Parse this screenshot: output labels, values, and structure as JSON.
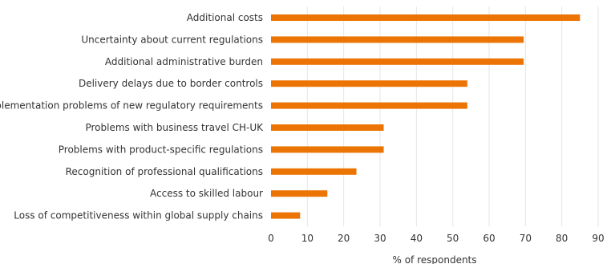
{
  "chart_data": {
    "type": "bar",
    "orientation": "horizontal",
    "categories": [
      "Additional costs",
      "Uncertainty about current regulations",
      "Additional administrative burden",
      "Delivery delays due to border controls",
      "Implementation problems of new regulatory requirements",
      "Problems with business travel CH-UK",
      "Problems with product-specific regulations",
      "Recognition of professional qualifications",
      "Access to skilled labour",
      "Loss of competitiveness within global supply chains"
    ],
    "values": [
      85,
      69.5,
      69.5,
      54,
      54,
      31,
      31,
      23.5,
      15.5,
      8
    ],
    "xlabel": "% of respondents",
    "ylabel": "",
    "xlim": [
      0,
      90
    ],
    "xticks": [
      "0",
      "10",
      "20",
      "30",
      "40",
      "50",
      "60",
      "70",
      "80",
      "90"
    ],
    "grid": "vertical",
    "bar_color": "#ec7404"
  }
}
